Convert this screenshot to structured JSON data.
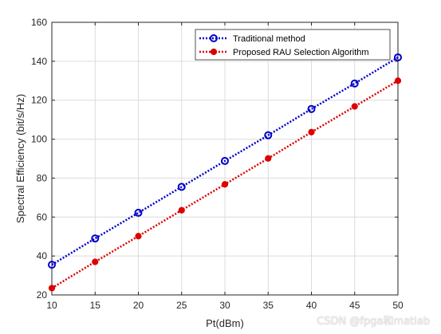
{
  "chart_data": {
    "type": "line",
    "xlabel": "Pt(dBm)",
    "ylabel": "Spectral Efficiency (bit/s/Hz)",
    "x": [
      10,
      15,
      20,
      25,
      30,
      35,
      40,
      45,
      50
    ],
    "xlim": [
      10,
      50
    ],
    "ylim": [
      20,
      160
    ],
    "xticks": [
      "10",
      "15",
      "20",
      "25",
      "30",
      "35",
      "40",
      "45",
      "50"
    ],
    "yticks": [
      "20",
      "40",
      "60",
      "80",
      "100",
      "120",
      "140",
      "160"
    ],
    "grid": true,
    "legend_position": "top-right",
    "series": [
      {
        "name": "Traditional method",
        "color": "#0000cc",
        "marker": "circle-open",
        "line_style": "dotted",
        "values": [
          35.5,
          49,
          62.2,
          75.5,
          88.8,
          102,
          115.5,
          128.6,
          142
        ]
      },
      {
        "name": "Proposed RAU Selection  Algorithm",
        "color": "#dd0000",
        "marker": "circle-filled",
        "line_style": "dotted",
        "values": [
          23.5,
          37,
          50.2,
          63.5,
          76.8,
          90.1,
          103.6,
          116.8,
          130
        ]
      }
    ]
  },
  "watermark": "CSDN @fpga和matlab"
}
